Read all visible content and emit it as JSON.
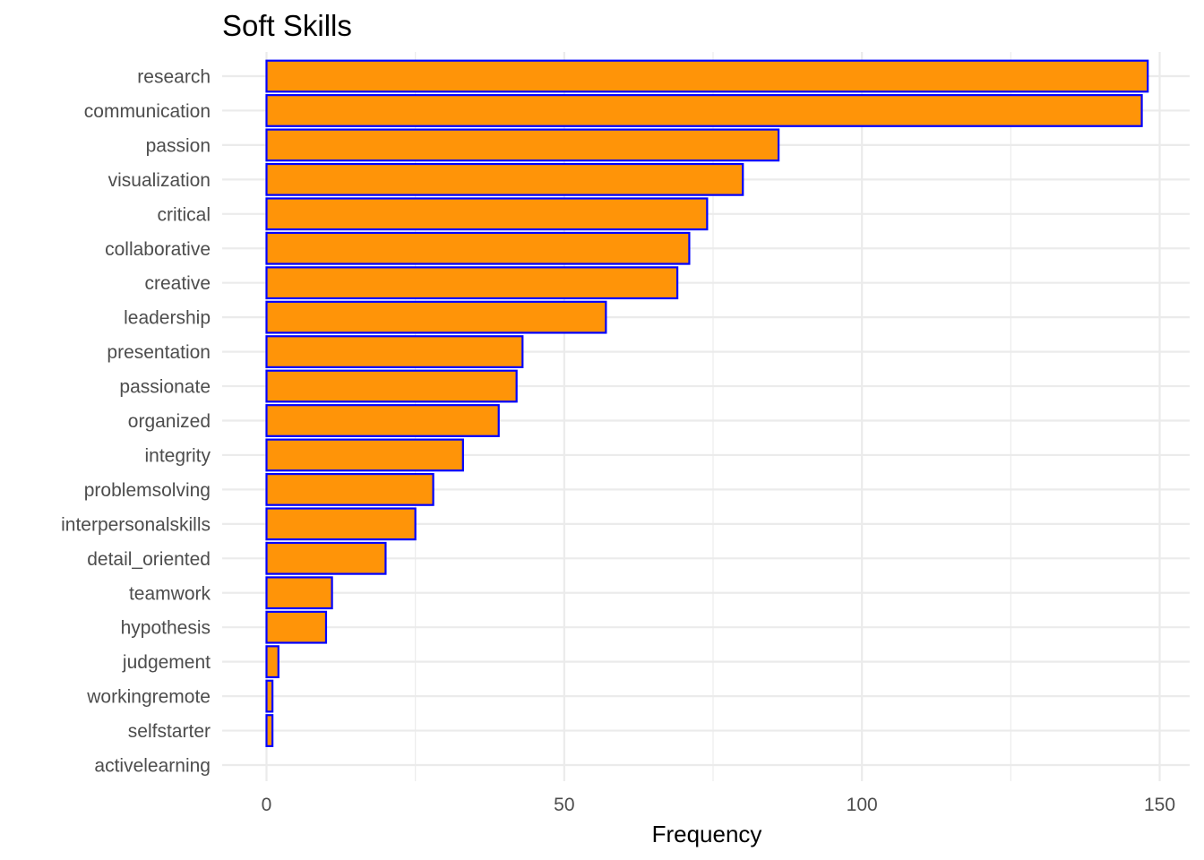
{
  "chart_data": {
    "type": "bar",
    "orientation": "horizontal",
    "title": "Soft Skills",
    "xlabel": "Frequency",
    "ylabel": "",
    "categories": [
      "research",
      "communication",
      "passion",
      "visualization",
      "critical",
      "collaborative",
      "creative",
      "leadership",
      "presentation",
      "passionate",
      "organized",
      "integrity",
      "problemsolving",
      "interpersonalskills",
      "detail_oriented",
      "teamwork",
      "hypothesis",
      "judgement",
      "workingremote",
      "selfstarter",
      "activelearning"
    ],
    "values": [
      148,
      147,
      86,
      80,
      74,
      71,
      69,
      57,
      43,
      42,
      39,
      33,
      28,
      25,
      20,
      11,
      10,
      2,
      1,
      1,
      0
    ],
    "xlim": [
      -7.5,
      155
    ],
    "x_ticks": [
      0,
      50,
      100,
      150
    ],
    "x_tick_labels": [
      "0",
      "50",
      "100",
      "150"
    ],
    "grid": true,
    "bar_fill": "#ff9408",
    "bar_outline": "#0000ff"
  }
}
